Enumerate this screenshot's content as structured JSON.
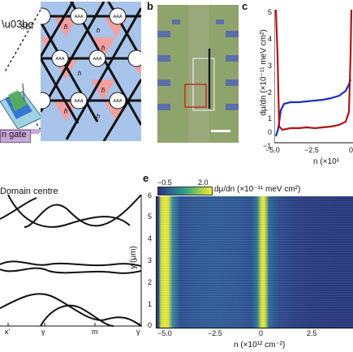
{
  "panel_a": {
    "label_set": "SET",
    "gate_label": "n gate",
    "site_label_aaa": "AAA",
    "site_label_h": "h",
    "site_label_hbar": "h̄"
  },
  "panel_b": {
    "letter": "b"
  },
  "panel_c": {
    "letter": "c",
    "ylabel": "dμ/dn (×10⁻¹¹ meV cm²)",
    "xlabel": "n (×10¹",
    "x_ticks": [
      "−5.0",
      "−2.5",
      "0"
    ],
    "y_ticks": [
      "5",
      "4",
      "3",
      "2",
      "1",
      "0",
      "−1"
    ],
    "colors": {
      "blue": "#1a2fbf",
      "red": "#b01414"
    }
  },
  "panel_d": {
    "title": "Domain centre",
    "k_ticks": [
      "κ′",
      "γ",
      "m",
      "γ"
    ]
  },
  "panel_e": {
    "letter": "e",
    "colorbar_min": "−0.5",
    "colorbar_max": "2.0",
    "colorbar_label": "dμ/dn (×10⁻¹¹ meV cm²)",
    "ylabel": "y (μm)",
    "xlabel": "n (×10¹² cm⁻²)",
    "y_ticks": [
      "6",
      "5",
      "4",
      "3",
      "2",
      "1",
      "0"
    ],
    "x_ticks": [
      "−5.0",
      "−2.5",
      "0",
      "2.5"
    ],
    "colors": {
      "low": "#2b2f7a",
      "high": "#f5ea3a"
    }
  }
}
